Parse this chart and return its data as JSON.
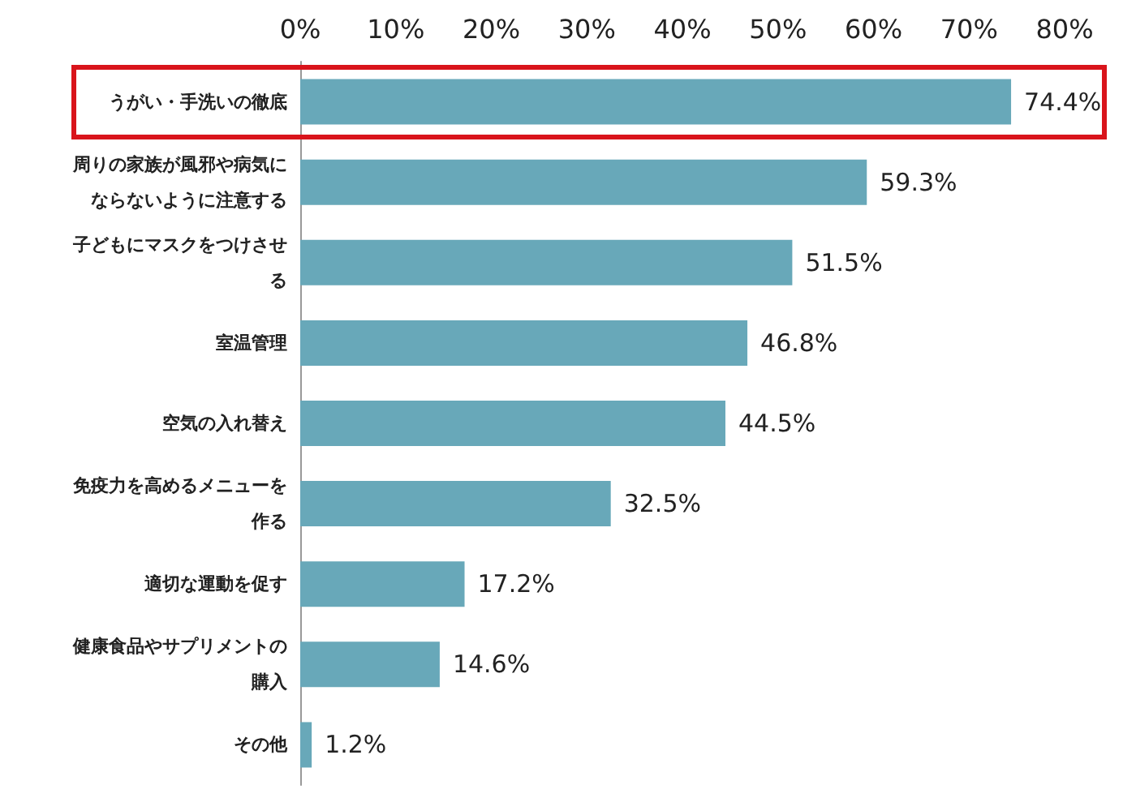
{
  "chart_data": {
    "type": "bar",
    "orientation": "horizontal",
    "categories": [
      "うがい・手洗いの徹底",
      "周りの家族が風邪や病気にならないように注意する",
      "子どもにマスクをつけさせる",
      "室温管理",
      "空気の入れ替え",
      "免疫力を高めるメニューを作る",
      "適切な運動を促す",
      "健康食品やサプリメントの購入",
      "その他"
    ],
    "values": [
      74.4,
      59.3,
      51.5,
      46.8,
      44.5,
      32.5,
      17.2,
      14.6,
      1.2
    ],
    "value_labels": [
      "74.4%",
      "59.3%",
      "51.5%",
      "46.8%",
      "44.5%",
      "32.5%",
      "17.2%",
      "14.6%",
      "1.2%"
    ],
    "color": "#68a8b9",
    "xlim": [
      0,
      80
    ],
    "xticks": [
      {
        "value": 0,
        "label": "0%"
      },
      {
        "value": 10,
        "label": "10%"
      },
      {
        "value": 20,
        "label": "20%"
      },
      {
        "value": 30,
        "label": "30%"
      },
      {
        "value": 40,
        "label": "40%"
      },
      {
        "value": 50,
        "label": "50%"
      },
      {
        "value": 60,
        "label": "60%"
      },
      {
        "value": 70,
        "label": "70%"
      },
      {
        "value": 80,
        "label": "80%"
      }
    ],
    "grid": false
  }
}
